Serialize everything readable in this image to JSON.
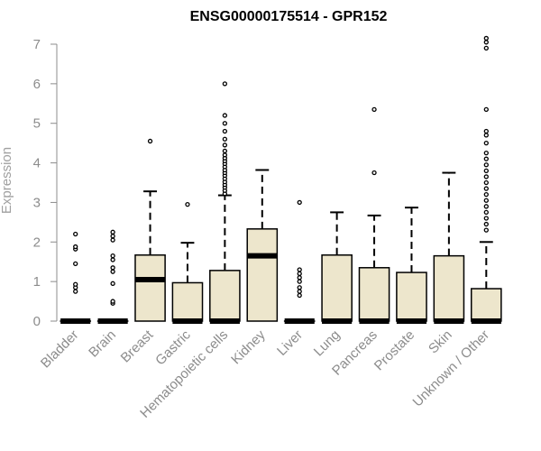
{
  "chart_data": {
    "type": "boxplot",
    "title": "ENSG00000175514 - GPR152",
    "ylabel": "Expression",
    "xlabel": "",
    "ylim": [
      0,
      7
    ],
    "yticks": [
      0,
      1,
      2,
      3,
      4,
      5,
      6,
      7
    ],
    "box_fill": "#ede6cc",
    "categories": [
      "Bladder",
      "Brain",
      "Breast",
      "Gastric",
      "Hematopoietic cells",
      "Kidney",
      "Liver",
      "Lung",
      "Pancreas",
      "Prostate",
      "Skin",
      "Unknown / Other"
    ],
    "boxes": [
      {
        "q1": 0,
        "median": 0,
        "q3": 0,
        "whisker_low": 0,
        "whisker_high": 0,
        "outliers": [
          0.75,
          0.85,
          0.93,
          1.45,
          1.82,
          1.88,
          2.2
        ]
      },
      {
        "q1": 0,
        "median": 0,
        "q3": 0,
        "whisker_low": 0,
        "whisker_high": 0,
        "outliers": [
          0.45,
          0.5,
          0.95,
          1.25,
          1.35,
          1.55,
          1.65,
          2.05,
          2.15,
          2.25
        ]
      },
      {
        "q1": 0,
        "median": 1.05,
        "q3": 1.67,
        "whisker_low": 0,
        "whisker_high": 3.28,
        "outliers": [
          4.55
        ]
      },
      {
        "q1": 0,
        "median": 0,
        "q3": 0.97,
        "whisker_low": 0,
        "whisker_high": 1.98,
        "outliers": [
          2.95
        ]
      },
      {
        "q1": 0,
        "median": 0,
        "q3": 1.28,
        "whisker_low": 0,
        "whisker_high": 3.18,
        "outliers": [
          3.22,
          3.3,
          3.38,
          3.45,
          3.52,
          3.6,
          3.68,
          3.75,
          3.82,
          3.9,
          3.98,
          4.05,
          4.12,
          4.2,
          4.3,
          4.45,
          4.6,
          4.8,
          5.0,
          5.2,
          6.0
        ]
      },
      {
        "q1": 0,
        "median": 1.65,
        "q3": 2.33,
        "whisker_low": 0,
        "whisker_high": 3.82,
        "outliers": []
      },
      {
        "q1": 0,
        "median": 0,
        "q3": 0,
        "whisker_low": 0,
        "whisker_high": 0,
        "outliers": [
          0.65,
          0.75,
          0.85,
          1.0,
          1.1,
          1.2,
          1.3,
          3.0
        ]
      },
      {
        "q1": 0,
        "median": 0,
        "q3": 1.67,
        "whisker_low": 0,
        "whisker_high": 2.75,
        "outliers": []
      },
      {
        "q1": 0,
        "median": 0,
        "q3": 1.35,
        "whisker_low": 0,
        "whisker_high": 2.67,
        "outliers": [
          3.75,
          5.35
        ]
      },
      {
        "q1": 0,
        "median": 0,
        "q3": 1.23,
        "whisker_low": 0,
        "whisker_high": 2.87,
        "outliers": []
      },
      {
        "q1": 0,
        "median": 0,
        "q3": 1.65,
        "whisker_low": 0,
        "whisker_high": 3.75,
        "outliers": []
      },
      {
        "q1": 0,
        "median": 0,
        "q3": 0.82,
        "whisker_low": 0,
        "whisker_high": 2.0,
        "outliers": [
          2.3,
          2.45,
          2.6,
          2.75,
          2.9,
          3.05,
          3.2,
          3.35,
          3.5,
          3.65,
          3.8,
          3.95,
          4.1,
          4.25,
          4.5,
          4.7,
          4.8,
          5.35,
          6.9,
          7.05,
          7.15
        ]
      }
    ]
  }
}
